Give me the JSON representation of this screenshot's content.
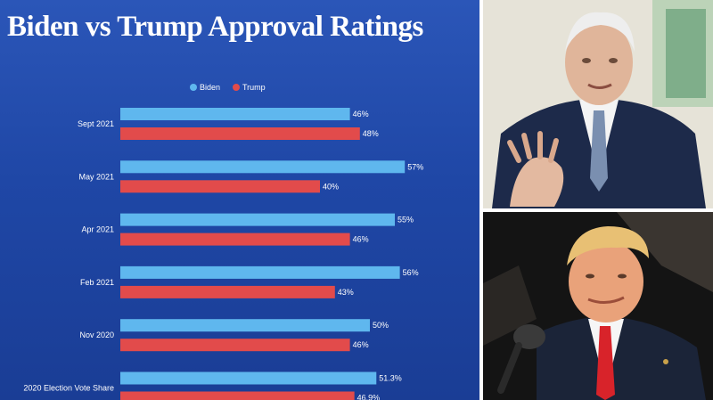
{
  "chart_data": {
    "type": "bar",
    "orientation": "horizontal",
    "title": "Biden vs Trump Approval Ratings",
    "categories": [
      "Sept 2021",
      "May 2021",
      "Apr 2021",
      "Feb 2021",
      "Nov 2020",
      "2020 Election Vote Share"
    ],
    "series": [
      {
        "name": "Biden",
        "color": "#5fb7ee",
        "values": [
          46,
          57,
          55,
          56,
          50,
          51.3
        ],
        "labels": [
          "46%",
          "57%",
          "55%",
          "56%",
          "50%",
          "51.3%"
        ]
      },
      {
        "name": "Trump",
        "color": "#e24b4b",
        "values": [
          48,
          40,
          46,
          43,
          46,
          46.9
        ],
        "labels": [
          "48%",
          "40%",
          "46%",
          "43%",
          "46%",
          "46.9%"
        ]
      }
    ],
    "xlim": [
      0,
      66
    ],
    "legend": "top-center",
    "grid": false
  },
  "photos": {
    "top": {
      "subject": "biden-photo",
      "background": "#e9e6dc",
      "suit": "#1d2a4a",
      "tie": "#7a8fb0",
      "skin": "#e0b59a",
      "hair": "#eeeeee"
    },
    "bottom": {
      "subject": "trump-photo",
      "background": "#121212",
      "suit": "#1b2438",
      "tie": "#d8232a",
      "skin": "#e9a27a",
      "hair": "#e8c074"
    }
  }
}
